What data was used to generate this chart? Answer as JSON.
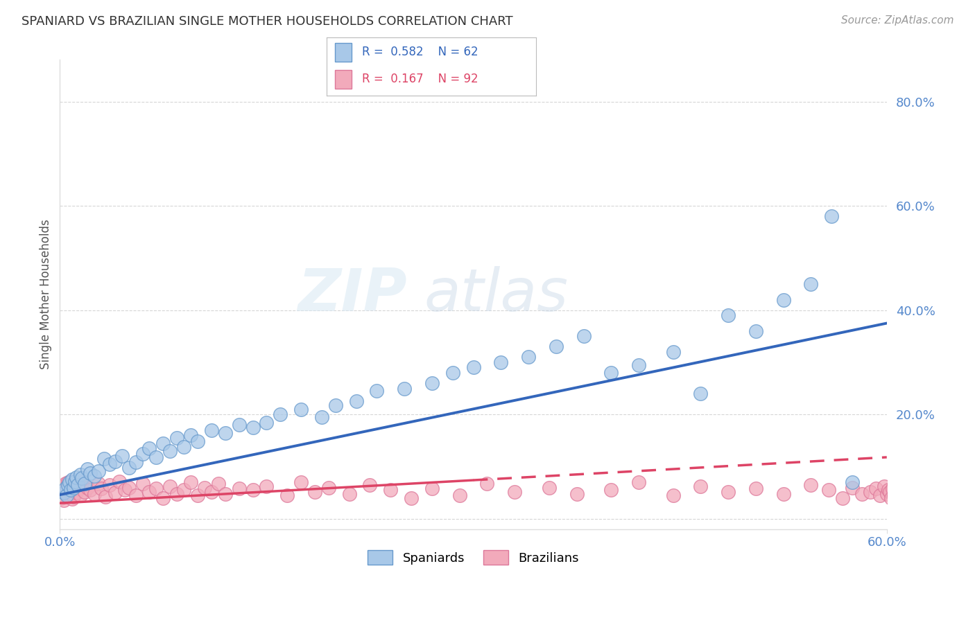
{
  "title": "SPANIARD VS BRAZILIAN SINGLE MOTHER HOUSEHOLDS CORRELATION CHART",
  "source": "Source: ZipAtlas.com",
  "ylabel": "Single Mother Households",
  "xlim": [
    0.0,
    0.6
  ],
  "ylim": [
    -0.02,
    0.88
  ],
  "ytick_values": [
    0.0,
    0.2,
    0.4,
    0.6,
    0.8
  ],
  "ytick_labels": [
    "",
    "20.0%",
    "40.0%",
    "60.0%",
    "80.0%"
  ],
  "spaniard_color": "#A8C8E8",
  "spaniard_edge_color": "#6699CC",
  "brazilian_color": "#F2AABB",
  "brazilian_edge_color": "#DD7799",
  "blue_line_color": "#3366BB",
  "pink_line_color": "#DD4466",
  "tick_color": "#5588CC",
  "grid_color": "#CCCCCC",
  "spaniard_R": 0.582,
  "spaniard_N": 62,
  "brazilian_R": 0.167,
  "brazilian_N": 92,
  "blue_line_x0": 0.0,
  "blue_line_y0": 0.046,
  "blue_line_x1": 0.6,
  "blue_line_y1": 0.375,
  "pink_line_x0": 0.0,
  "pink_line_y0": 0.03,
  "pink_line_x1": 0.6,
  "pink_line_y1": 0.118,
  "spaniard_x": [
    0.003,
    0.004,
    0.005,
    0.006,
    0.007,
    0.008,
    0.009,
    0.01,
    0.011,
    0.012,
    0.013,
    0.015,
    0.016,
    0.018,
    0.02,
    0.022,
    0.025,
    0.028,
    0.032,
    0.036,
    0.04,
    0.045,
    0.05,
    0.055,
    0.06,
    0.065,
    0.07,
    0.075,
    0.08,
    0.085,
    0.09,
    0.095,
    0.1,
    0.11,
    0.12,
    0.13,
    0.14,
    0.15,
    0.16,
    0.175,
    0.19,
    0.2,
    0.215,
    0.23,
    0.25,
    0.27,
    0.285,
    0.3,
    0.32,
    0.34,
    0.36,
    0.38,
    0.4,
    0.42,
    0.445,
    0.465,
    0.485,
    0.505,
    0.525,
    0.545,
    0.56,
    0.575
  ],
  "spaniard_y": [
    0.05,
    0.058,
    0.045,
    0.065,
    0.07,
    0.055,
    0.075,
    0.06,
    0.072,
    0.08,
    0.065,
    0.085,
    0.078,
    0.068,
    0.095,
    0.088,
    0.082,
    0.092,
    0.115,
    0.105,
    0.11,
    0.12,
    0.098,
    0.108,
    0.125,
    0.135,
    0.118,
    0.145,
    0.13,
    0.155,
    0.138,
    0.16,
    0.148,
    0.17,
    0.165,
    0.18,
    0.175,
    0.185,
    0.2,
    0.21,
    0.195,
    0.218,
    0.225,
    0.245,
    0.25,
    0.26,
    0.28,
    0.29,
    0.3,
    0.31,
    0.33,
    0.35,
    0.28,
    0.295,
    0.32,
    0.24,
    0.39,
    0.36,
    0.42,
    0.45,
    0.58,
    0.07
  ],
  "brazilian_x": [
    0.001,
    0.001,
    0.002,
    0.002,
    0.003,
    0.003,
    0.004,
    0.004,
    0.005,
    0.005,
    0.006,
    0.006,
    0.007,
    0.007,
    0.008,
    0.008,
    0.009,
    0.009,
    0.01,
    0.01,
    0.012,
    0.012,
    0.014,
    0.015,
    0.016,
    0.018,
    0.02,
    0.022,
    0.025,
    0.028,
    0.03,
    0.033,
    0.036,
    0.04,
    0.043,
    0.047,
    0.05,
    0.055,
    0.06,
    0.065,
    0.07,
    0.075,
    0.08,
    0.085,
    0.09,
    0.095,
    0.1,
    0.105,
    0.11,
    0.115,
    0.12,
    0.13,
    0.14,
    0.15,
    0.165,
    0.175,
    0.185,
    0.195,
    0.21,
    0.225,
    0.24,
    0.255,
    0.27,
    0.29,
    0.31,
    0.33,
    0.355,
    0.375,
    0.4,
    0.42,
    0.445,
    0.465,
    0.485,
    0.505,
    0.525,
    0.545,
    0.558,
    0.568,
    0.575,
    0.582,
    0.588,
    0.592,
    0.595,
    0.598,
    0.6,
    0.601,
    0.602,
    0.603,
    0.604,
    0.605,
    0.606,
    0.607
  ],
  "brazilian_y": [
    0.04,
    0.055,
    0.048,
    0.062,
    0.035,
    0.058,
    0.042,
    0.068,
    0.05,
    0.06,
    0.045,
    0.07,
    0.052,
    0.065,
    0.048,
    0.072,
    0.038,
    0.055,
    0.06,
    0.042,
    0.065,
    0.05,
    0.058,
    0.045,
    0.07,
    0.052,
    0.06,
    0.055,
    0.048,
    0.068,
    0.058,
    0.042,
    0.065,
    0.05,
    0.072,
    0.055,
    0.06,
    0.045,
    0.068,
    0.052,
    0.058,
    0.04,
    0.062,
    0.048,
    0.055,
    0.07,
    0.045,
    0.06,
    0.052,
    0.068,
    0.048,
    0.058,
    0.055,
    0.062,
    0.045,
    0.07,
    0.052,
    0.06,
    0.048,
    0.065,
    0.055,
    0.04,
    0.058,
    0.045,
    0.068,
    0.052,
    0.06,
    0.048,
    0.055,
    0.07,
    0.045,
    0.062,
    0.052,
    0.058,
    0.048,
    0.065,
    0.055,
    0.04,
    0.06,
    0.048,
    0.052,
    0.058,
    0.045,
    0.062,
    0.048,
    0.055,
    0.052,
    0.04,
    0.058,
    0.045,
    0.062,
    0.05
  ]
}
